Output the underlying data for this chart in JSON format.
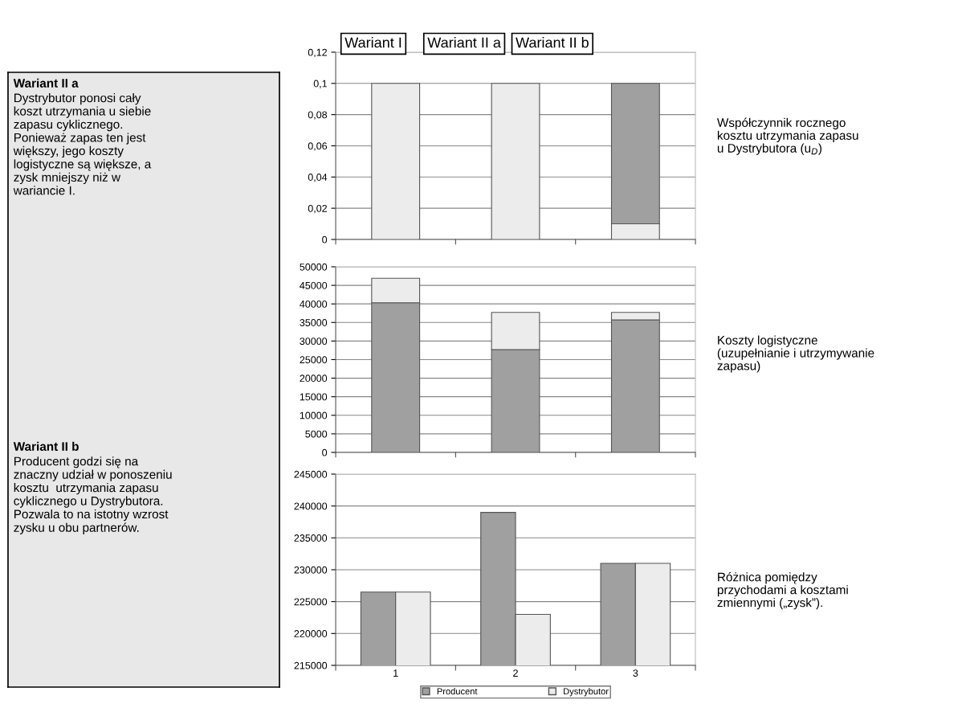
{
  "chart_data": [
    {
      "type": "other",
      "annotations": [
        "Wariant II a",
        "Dystrybutor ponosi cały\nkoszt utrzymania u siebie\nzapasu cyklicznego.\nPonieważ zapas ten jest\nwiększy, jego koszty\nlogistyczne są większe, a\nzysk mniejszy niż w\nwariancie I.",
        "Wariant II b",
        "Producent godzi się na\nznaczny udział w ponoszeniu\nkosztu  utrzymania zapasu\ncyklicznego u Dystrybutora.\nPozwala to na istotny wzrost\nzysku u obu partnerów."
      ]
    },
    {
      "type": "bar",
      "stacked": true,
      "categories": [
        null,
        null,
        null
      ],
      "tick_labels": "y",
      "grid": "y",
      "series": [
        {
          "color": "#ececec",
          "values": [
            0.1,
            0.1,
            0.01
          ]
        },
        {
          "color": "#a0a0a0",
          "values": [
            0,
            0,
            0.09
          ]
        }
      ],
      "ylim": [
        0,
        0.12
      ],
      "yticks": [
        0,
        {
          "value": 0.02,
          "label": "0,02"
        },
        {
          "value": 0.04,
          "label": "0,04"
        },
        {
          "value": 0.06,
          "label": "0,06"
        },
        {
          "value": 0.08,
          "label": "0,08"
        },
        {
          "value": 0.1,
          "label": "0,1"
        },
        {
          "value": 0.12,
          "label": "0,12"
        }
      ],
      "annotations": [
        "Wariant I",
        "Wariant II a",
        "Wariant II b",
        "Współczynnik rocznego\nkosztu utrzymania zapasu\nu Dystrybutora (u$_{D}$)"
      ]
    },
    {
      "type": "bar",
      "stacked": true,
      "categories": [
        null,
        null,
        null
      ],
      "tick_labels": "y",
      "grid": "y",
      "series": [
        {
          "color": "#a0a0a0",
          "values": [
            40300,
            27700,
            35700
          ]
        },
        {
          "color": "#ececec",
          "values": [
            6600,
            10000,
            2000
          ]
        }
      ],
      "ylim": [
        0,
        50000
      ],
      "yticks": [
        0,
        5000,
        10000,
        15000,
        20000,
        25000,
        30000,
        35000,
        40000,
        45000,
        50000
      ],
      "annotations": [
        "Koszty logistyczne\n(uzupełnianie i utrzymywanie\nzapasu)"
      ]
    },
    {
      "type": "bar",
      "categories": [
        "1",
        "2",
        "3"
      ],
      "grid": "y",
      "legend": "bottom",
      "series": [
        {
          "name": "Producent",
          "color": "#a0a0a0",
          "values": [
            226500,
            239000,
            231000
          ]
        },
        {
          "name": "Dystrybutor",
          "color": "#ececec",
          "values": [
            226500,
            223000,
            231000
          ]
        }
      ],
      "ylim": [
        215000,
        245000
      ],
      "yticks": [
        215000,
        220000,
        225000,
        230000,
        235000,
        240000,
        245000
      ],
      "annotations": [
        "Różnica pomiędzy\nprzychodami a kosztami\nzmiennymi („zysk”)."
      ]
    }
  ]
}
